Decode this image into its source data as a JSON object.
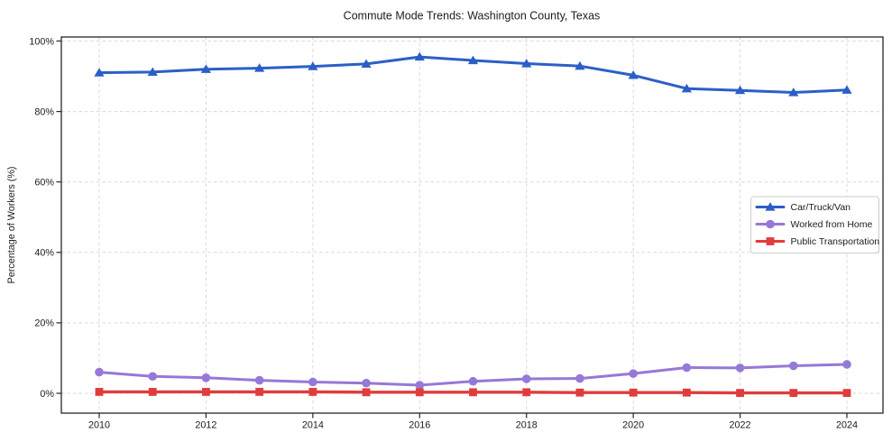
{
  "chart_data": {
    "type": "line",
    "title": "Commute Mode Trends: Washington County, Texas",
    "xlabel": "",
    "ylabel": "Percentage of Workers (%)",
    "x": [
      2010,
      2011,
      2012,
      2013,
      2014,
      2015,
      2016,
      2017,
      2018,
      2019,
      2020,
      2021,
      2022,
      2023,
      2024
    ],
    "xticks": [
      2010,
      2012,
      2014,
      2016,
      2018,
      2020,
      2022,
      2024
    ],
    "yticks": [
      0,
      20,
      40,
      60,
      80,
      100
    ],
    "ytick_suffix": "%",
    "ylim": [
      0,
      100
    ],
    "grid": true,
    "grid_style": "dashed",
    "legend_position": "center-right",
    "colors": {
      "grid": "#d9d9d9",
      "spine": "#262626",
      "legend_border": "#cccccc",
      "car": "#2b5fc7",
      "home": "#9678d8",
      "transit": "#e13c3c"
    },
    "series": [
      {
        "name": "Car/Truck/Van",
        "color": "#2b5fc7",
        "marker": "triangle",
        "values": [
          91.0,
          91.2,
          92.0,
          92.3,
          92.8,
          93.5,
          95.5,
          94.5,
          93.6,
          92.9,
          90.3,
          86.5,
          86.0,
          85.4,
          86.1
        ]
      },
      {
        "name": "Worked from Home",
        "color": "#9678d8",
        "marker": "circle",
        "values": [
          6.0,
          4.8,
          4.4,
          3.7,
          3.2,
          2.9,
          2.3,
          3.4,
          4.1,
          4.2,
          5.6,
          7.3,
          7.2,
          7.8,
          8.2
        ]
      },
      {
        "name": "Public Transportation",
        "color": "#e13c3c",
        "marker": "square",
        "values": [
          0.4,
          0.4,
          0.4,
          0.4,
          0.4,
          0.3,
          0.3,
          0.3,
          0.3,
          0.2,
          0.2,
          0.2,
          0.1,
          0.1,
          0.1
        ]
      }
    ]
  }
}
